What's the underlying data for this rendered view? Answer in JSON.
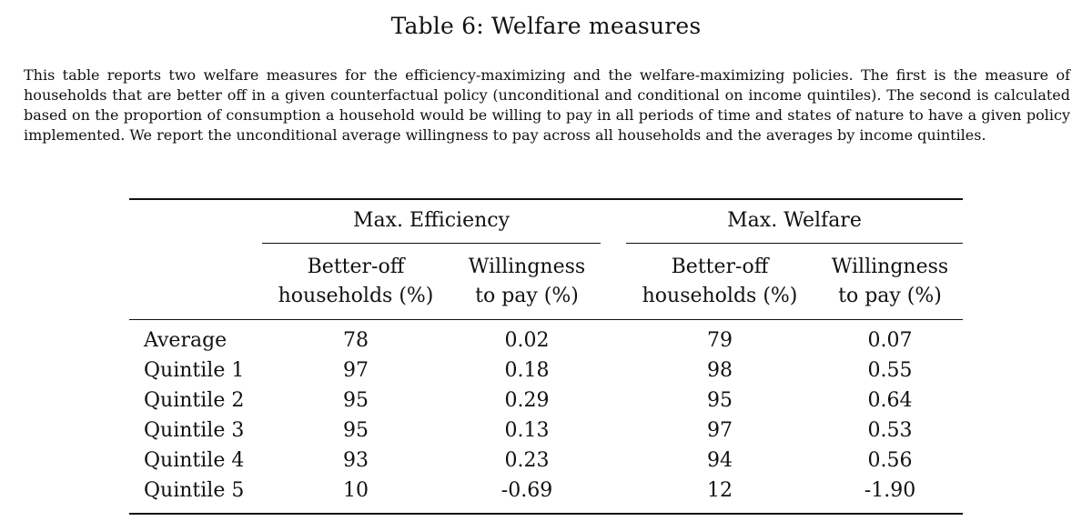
{
  "title": "Table 6: Welfare measures",
  "caption": "This table reports two welfare measures for the efficiency-maximizing and the welfare-maximizing policies. The first is the measure of households that are better off in a given counterfactual policy (unconditional and conditional on income quintiles). The second is calculated based on the proportion of consumption a household would be willing to pay in all periods of time and states of nature to have a given policy implemented. We report the unconditional average willingness to pay across all households and the averages by income quintiles.",
  "table": {
    "groups": {
      "efficiency": "Max. Efficiency",
      "welfare": "Max. Welfare"
    },
    "columns": {
      "better_off_line1": "Better-off",
      "better_off_line2": "households (%)",
      "wtp_line1": "Willingness",
      "wtp_line2": "to pay (%)"
    },
    "rows": [
      {
        "label": "Average",
        "eff_better": "78",
        "eff_wtp": "0.02",
        "wel_better": "79",
        "wel_wtp": "0.07"
      },
      {
        "label": "Quintile 1",
        "eff_better": "97",
        "eff_wtp": "0.18",
        "wel_better": "98",
        "wel_wtp": "0.55"
      },
      {
        "label": "Quintile 2",
        "eff_better": "95",
        "eff_wtp": "0.29",
        "wel_better": "95",
        "wel_wtp": "0.64"
      },
      {
        "label": "Quintile 3",
        "eff_better": "95",
        "eff_wtp": "0.13",
        "wel_better": "97",
        "wel_wtp": "0.53"
      },
      {
        "label": "Quintile 4",
        "eff_better": "93",
        "eff_wtp": "0.23",
        "wel_better": "94",
        "wel_wtp": "0.56"
      },
      {
        "label": "Quintile 5",
        "eff_better": "10",
        "eff_wtp": "-0.69",
        "wel_better": "12",
        "wel_wtp": "-1.90"
      }
    ]
  }
}
